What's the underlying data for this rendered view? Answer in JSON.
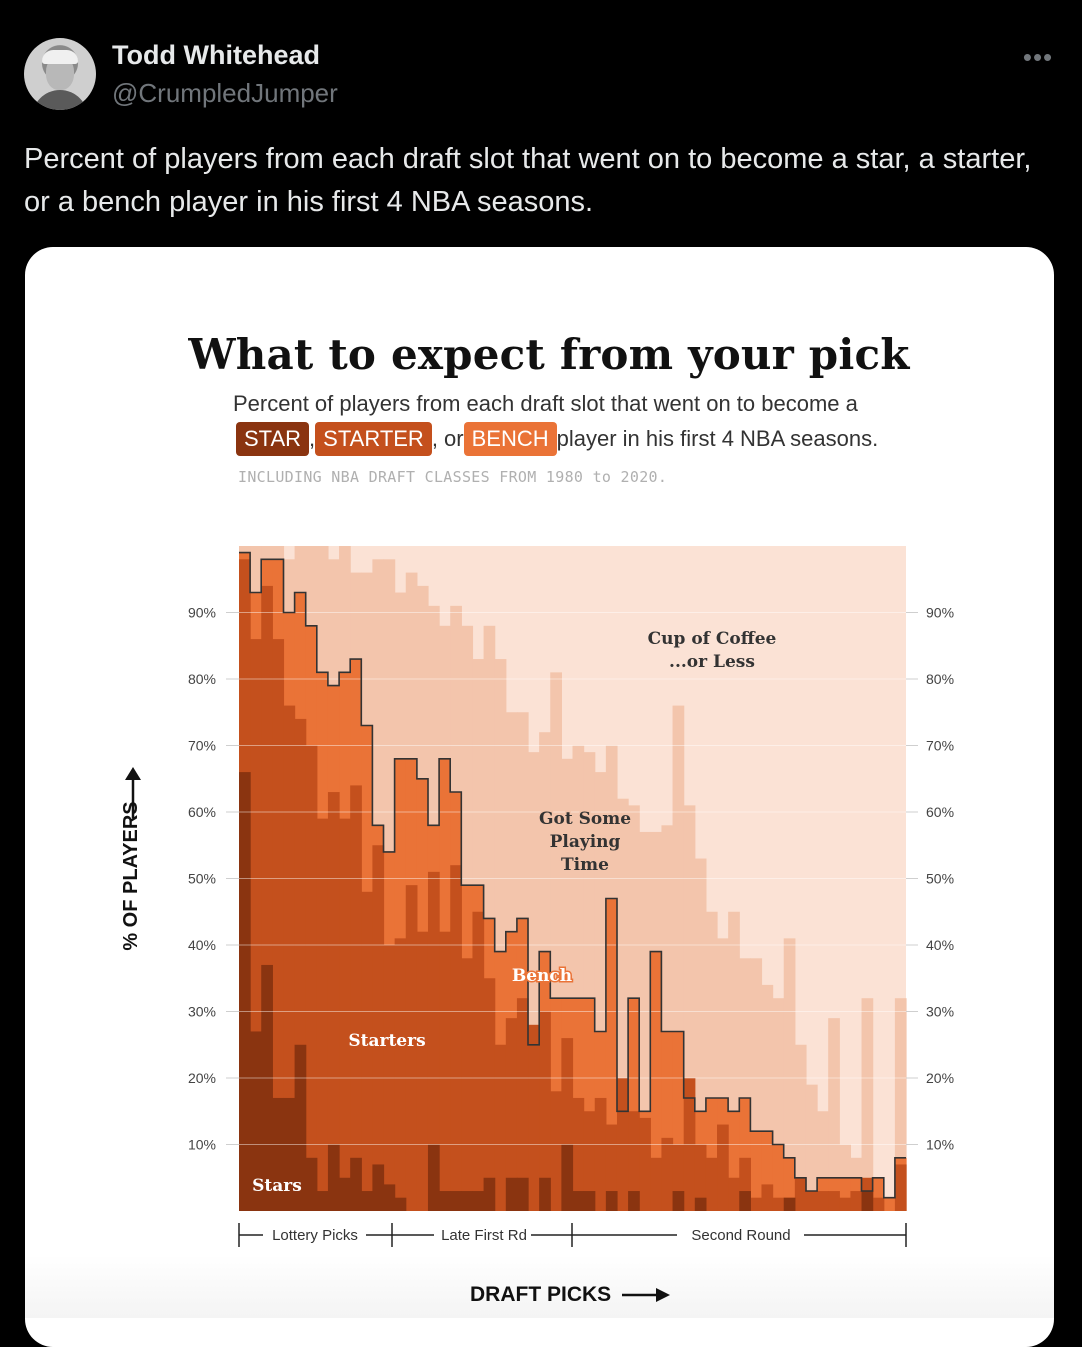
{
  "tweet": {
    "display_name": "Todd Whitehead",
    "handle": "@CrumpledJumper",
    "more_icon": "more-horizontal-icon",
    "text": "Percent of players from each draft slot that went on to become a star, a starter, or a bench player in his first 4 NBA seasons."
  },
  "chart": {
    "title": "What to expect from your pick",
    "subtitle_line1": "Percent of players from each draft slot that went on to become a",
    "legend_star": "STAR",
    "legend_starter": "STARTER",
    "legend_bench": "BENCH",
    "sep_comma": ",",
    "sep_or": ", or",
    "subtitle_end": "player in his first 4 NBA seasons.",
    "note": "INCLUDING NBA DRAFT CLASSES FROM 1980 to 2020.",
    "ylabel": "% OF PLAYERS",
    "xlabel": "DRAFT PICKS",
    "label_stars": "Stars",
    "label_starters": "Starters",
    "label_bench": "Bench",
    "label_playing_1": "Got Some",
    "label_playing_2": "Playing",
    "label_playing_3": "Time",
    "label_coffee_1": "Cup of Coffee",
    "label_coffee_2": "...or Less",
    "section_lottery": "Lottery Picks",
    "section_late_first": "Late First Rd",
    "section_second": "Second Round",
    "colors": {
      "star": "#8a3410",
      "starter": "#c4501d",
      "bench": "#ea7337",
      "playing": "#f3c5ac",
      "coffee": "#fbe2d5"
    }
  },
  "chart_data": {
    "type": "area",
    "x": [
      1,
      2,
      3,
      4,
      5,
      6,
      7,
      8,
      9,
      10,
      11,
      12,
      13,
      14,
      15,
      16,
      17,
      18,
      19,
      20,
      21,
      22,
      23,
      24,
      25,
      26,
      27,
      28,
      29,
      30,
      31,
      32,
      33,
      34,
      35,
      36,
      37,
      38,
      39,
      40,
      41,
      42,
      43,
      44,
      45,
      46,
      47,
      48,
      49,
      50,
      51,
      52,
      53,
      54,
      55,
      56,
      57,
      58,
      59,
      60
    ],
    "yticks": [
      "10%",
      "20%",
      "30%",
      "40%",
      "50%",
      "60%",
      "70%",
      "80%",
      "90%"
    ],
    "ylim": [
      0,
      100
    ],
    "series": [
      {
        "name": "Stars",
        "values": [
          66,
          27,
          37,
          17,
          17,
          25,
          8,
          3,
          10,
          5,
          8,
          3,
          7,
          4,
          2,
          0,
          0,
          10,
          3,
          3,
          3,
          3,
          5,
          0,
          5,
          5,
          0,
          5,
          0,
          10,
          3,
          3,
          0,
          3,
          0,
          3,
          0,
          0,
          0,
          3,
          0,
          2,
          0,
          0,
          0,
          3,
          0,
          0,
          0,
          2,
          0,
          0,
          0,
          0,
          0,
          0,
          3,
          0,
          0,
          0
        ]
      },
      {
        "name": "Starters",
        "values": [
          98,
          86,
          94,
          86,
          76,
          74,
          70,
          59,
          63,
          59,
          64,
          48,
          55,
          40,
          41,
          49,
          42,
          51,
          42,
          52,
          38,
          45,
          35,
          25,
          29,
          32,
          28,
          30,
          18,
          26,
          17,
          15,
          17,
          13,
          20,
          15,
          14,
          8,
          11,
          10,
          20,
          10,
          8,
          13,
          5,
          8,
          2,
          4,
          2,
          2,
          5,
          3,
          3,
          3,
          2,
          3,
          5,
          2,
          0,
          7
        ]
      },
      {
        "name": "Bench",
        "values": [
          99,
          93,
          98,
          98,
          90,
          93,
          88,
          81,
          79,
          81,
          83,
          73,
          58,
          54,
          68,
          68,
          65,
          58,
          68,
          63,
          49,
          49,
          44,
          39,
          42,
          44,
          25,
          39,
          32,
          32,
          32,
          32,
          27,
          47,
          15,
          32,
          15,
          39,
          27,
          27,
          17,
          15,
          17,
          17,
          15,
          17,
          12,
          12,
          10,
          8,
          5,
          3,
          5,
          5,
          5,
          5,
          3,
          5,
          2,
          8
        ]
      },
      {
        "name": "Got Some Playing Time",
        "values": [
          100,
          100,
          100,
          100,
          98,
          100,
          100,
          100,
          98,
          100,
          96,
          96,
          98,
          98,
          93,
          96,
          94,
          91,
          88,
          91,
          88,
          83,
          88,
          83,
          75,
          75,
          69,
          72,
          81,
          68,
          70,
          69,
          66,
          70,
          62,
          61,
          57,
          57,
          58,
          76,
          61,
          53,
          45,
          41,
          45,
          38,
          38,
          34,
          32,
          41,
          25,
          19,
          15,
          29,
          10,
          8,
          32,
          0,
          0,
          32
        ]
      }
    ],
    "x_sections": [
      "Lottery Picks",
      "Late First Rd",
      "Second Round"
    ]
  }
}
